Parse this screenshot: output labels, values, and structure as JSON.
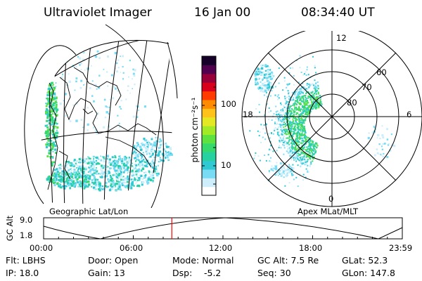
{
  "header": {
    "title": "Ultraviolet Imager",
    "date": "16 Jan 00",
    "time": "08:34:40 UT"
  },
  "colorbar": {
    "unit_label": "photon cm⁻²s⁻¹",
    "ticks": [
      "100",
      "10"
    ],
    "scale": "log",
    "colors": [
      "#ffffff",
      "#cdeefa",
      "#79dcf4",
      "#2ec9d3",
      "#27d1a0",
      "#36d96b",
      "#5ee23f",
      "#a2ea28",
      "#e4e823",
      "#ffc21a",
      "#ff8c00",
      "#ff3b00",
      "#d8001a",
      "#98003a",
      "#50004e",
      "#140028"
    ]
  },
  "geo_panel": {
    "caption": "Geographic Lat/Lon"
  },
  "polar_panel": {
    "caption": "Apex MLat/MLT",
    "lat_labels": [
      "80",
      "70",
      "60"
    ],
    "mlt_labels": {
      "top": "12",
      "left": "18",
      "right": "6",
      "bottom": "0"
    }
  },
  "timeline": {
    "axis_label": "GC Alt",
    "y_ticks": [
      "9.0",
      "1.8"
    ],
    "x_ticks": [
      "00:00",
      "06:00",
      "12:00",
      "18:00",
      "23:59"
    ],
    "current_time_fraction": 0.3574
  },
  "status": {
    "flt": "Flt: LBHS",
    "ip": "IP: 18.0",
    "door": "Door: Open",
    "gain": "Gain: 13",
    "mode": "Mode: Normal",
    "dsp": "Dsp:",
    "dsp_value": "-5.2",
    "gc_alt": "GC Alt: 7.5 Re",
    "seq": "Seq: 30",
    "glat": "GLat: 52.3",
    "glon": "GLon: 147.8"
  }
}
